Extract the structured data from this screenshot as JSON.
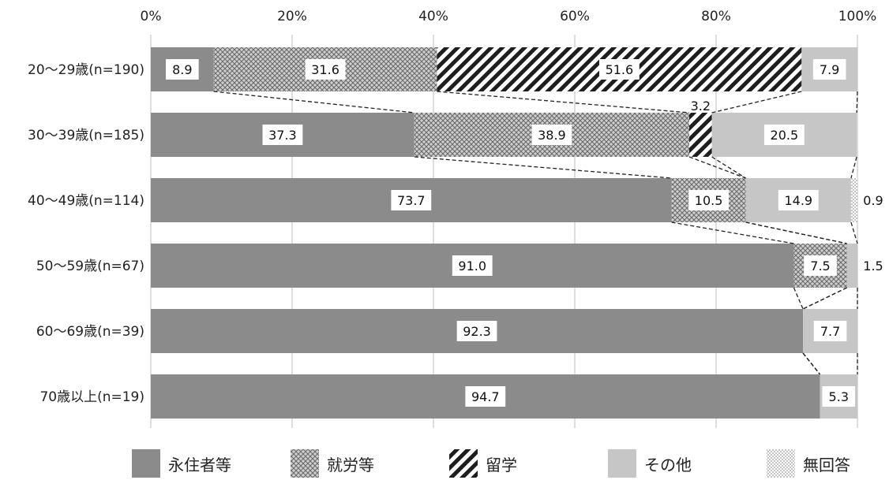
{
  "chart_data": {
    "type": "bar",
    "orientation": "horizontal",
    "stacked": "percent",
    "title": "",
    "xlabel": "",
    "ylabel": "",
    "xlim": [
      0,
      100
    ],
    "x_ticks": [
      "0%",
      "20%",
      "40%",
      "60%",
      "80%",
      "100%"
    ],
    "grid": "vertical",
    "legend_position": "bottom",
    "categories": [
      "20～29歳(n=190)",
      "30～39歳(n=185)",
      "40～49歳(n=114)",
      "50～59歳(n=67)",
      "60～69歳(n=39)",
      "70歳以上(n=19)"
    ],
    "series": [
      {
        "name": "永住者等",
        "pattern": "solid-dark",
        "color": "#8a8a8a",
        "values": [
          8.9,
          37.3,
          73.7,
          91.0,
          92.3,
          94.7
        ]
      },
      {
        "name": "就労等",
        "pattern": "crosshatch",
        "color": "#9a9a9a",
        "values": [
          31.6,
          38.9,
          10.5,
          7.5,
          0,
          0
        ]
      },
      {
        "name": "留学",
        "pattern": "diagonal-stripes",
        "color": "#222222",
        "values": [
          51.6,
          3.2,
          0,
          0,
          0,
          0
        ]
      },
      {
        "name": "その他",
        "pattern": "solid-light",
        "color": "#c8c8c8",
        "values": [
          7.9,
          20.5,
          14.9,
          1.5,
          7.7,
          5.3
        ]
      },
      {
        "name": "無回答",
        "pattern": "dots",
        "color": "#bbbbbb",
        "values": [
          0,
          0,
          0.9,
          0,
          0,
          0
        ]
      }
    ],
    "data_labels": [
      [
        "8.9",
        "31.6",
        "51.6",
        "7.9",
        ""
      ],
      [
        "37.3",
        "38.9",
        "3.2",
        "20.5",
        ""
      ],
      [
        "73.7",
        "10.5",
        "",
        "14.9",
        "0.9"
      ],
      [
        "91.0",
        "7.5",
        "",
        "1.5",
        ""
      ],
      [
        "92.3",
        "",
        "",
        "7.7",
        ""
      ],
      [
        "94.7",
        "",
        "",
        "5.3",
        ""
      ]
    ],
    "series_lines": "dashed connectors between adjacent bars"
  }
}
